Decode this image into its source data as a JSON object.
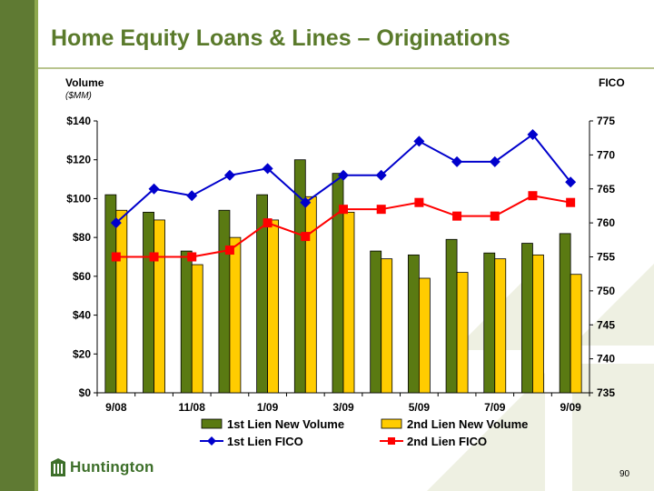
{
  "slide": {
    "title": "Home Equity Loans & Lines – Originations",
    "page_number": "90",
    "logo_text": "Huntington"
  },
  "chart_data": {
    "type": "bar",
    "title": "",
    "left_axis_label": "Volume",
    "left_axis_unit": "($MM)",
    "right_axis_label": "FICO",
    "categories": [
      "9/08",
      "10/08",
      "11/08",
      "12/08",
      "1/09",
      "2/09",
      "3/09",
      "4/09",
      "5/09",
      "6/09",
      "7/09",
      "8/09",
      "9/09"
    ],
    "x_tick_labels": [
      "9/08",
      "",
      "11/08",
      "",
      "1/09",
      "",
      "3/09",
      "",
      "5/09",
      "",
      "7/09",
      "",
      "9/09"
    ],
    "y_left": {
      "min": 0,
      "max": 140,
      "step": 20,
      "tick_labels": [
        "$0",
        "$20",
        "$40",
        "$60",
        "$80",
        "$100",
        "$120",
        "$140"
      ]
    },
    "y_right": {
      "min": 735,
      "max": 775,
      "step": 5,
      "tick_labels": [
        "735",
        "740",
        "745",
        "750",
        "755",
        "760",
        "765",
        "770",
        "775"
      ]
    },
    "bar_series": [
      {
        "name": "1st Lien New Volume",
        "color": "#5a7a12",
        "values": [
          102,
          93,
          73,
          94,
          102,
          120,
          113,
          73,
          71,
          79,
          72,
          77,
          82
        ]
      },
      {
        "name": "2nd Lien New Volume",
        "color": "#ffcc00",
        "values": [
          94,
          89,
          66,
          80,
          89,
          101,
          93,
          69,
          59,
          62,
          69,
          71,
          61
        ]
      }
    ],
    "line_series": [
      {
        "name": "1st Lien FICO",
        "color": "#0000cc",
        "marker": "diamond",
        "values": [
          760,
          765,
          764,
          767,
          768,
          763,
          767,
          767,
          772,
          769,
          769,
          773,
          766
        ]
      },
      {
        "name": "2nd Lien FICO",
        "color": "#ff0000",
        "marker": "square",
        "values": [
          755,
          755,
          755,
          756,
          760,
          758,
          762,
          762,
          763,
          761,
          761,
          764,
          763
        ]
      }
    ],
    "legend_placement": "bottom",
    "grid": false
  }
}
